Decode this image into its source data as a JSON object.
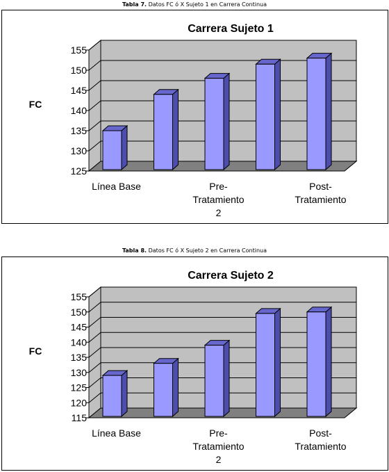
{
  "captions": [
    {
      "bold": "Tabla 7.",
      "text": " Datos FC ó X Sujeto 1 en Carrera Continua"
    },
    {
      "bold": "Tabla 8.",
      "text": " Datos FC ó X Sujeto 2 en Carrera Continua"
    }
  ],
  "chart_data": [
    {
      "type": "bar",
      "title": "Carrera Sujeto 1",
      "ylabel": "FC",
      "xlabel": "",
      "ylim": [
        125,
        155
      ],
      "yticks": [
        125,
        130,
        135,
        140,
        145,
        150,
        155
      ],
      "categories": [
        "Línea Base",
        "",
        "Pre-Tratamiento 2",
        "",
        "Post-Tratamiento"
      ],
      "category_labels": [
        {
          "index": 0,
          "lines": [
            "Línea Base"
          ]
        },
        {
          "index": 2,
          "lines": [
            "Pre-",
            "Tratamiento",
            "2"
          ]
        },
        {
          "index": 4,
          "lines": [
            "Post-",
            "Tratamiento"
          ]
        }
      ],
      "values": [
        135,
        144,
        148,
        151.5,
        153
      ],
      "grid": true,
      "style": "3d",
      "colors": {
        "bar_front": "#9999ff",
        "bar_side": "#4d4dab",
        "bar_top": "#6666cc",
        "wall": "#c0c0c0",
        "floor": "#808080"
      }
    },
    {
      "type": "bar",
      "title": "Carrera Sujeto 2",
      "ylabel": "FC",
      "xlabel": "",
      "ylim": [
        115,
        155
      ],
      "yticks": [
        115,
        120,
        125,
        130,
        135,
        140,
        145,
        150,
        155
      ],
      "categories": [
        "Línea Base",
        "",
        "Pre-Tratamiento 2",
        "",
        "Post-Tratamiento"
      ],
      "category_labels": [
        {
          "index": 0,
          "lines": [
            "Línea Base"
          ]
        },
        {
          "index": 2,
          "lines": [
            "Pre-",
            "Tratamiento",
            "2"
          ]
        },
        {
          "index": 4,
          "lines": [
            "Post-",
            "Tratamiento"
          ]
        }
      ],
      "values": [
        129,
        133,
        139,
        149.5,
        150
      ],
      "grid": true,
      "style": "3d",
      "colors": {
        "bar_front": "#9999ff",
        "bar_side": "#4d4dab",
        "bar_top": "#6666cc",
        "wall": "#c0c0c0",
        "floor": "#808080"
      }
    }
  ]
}
